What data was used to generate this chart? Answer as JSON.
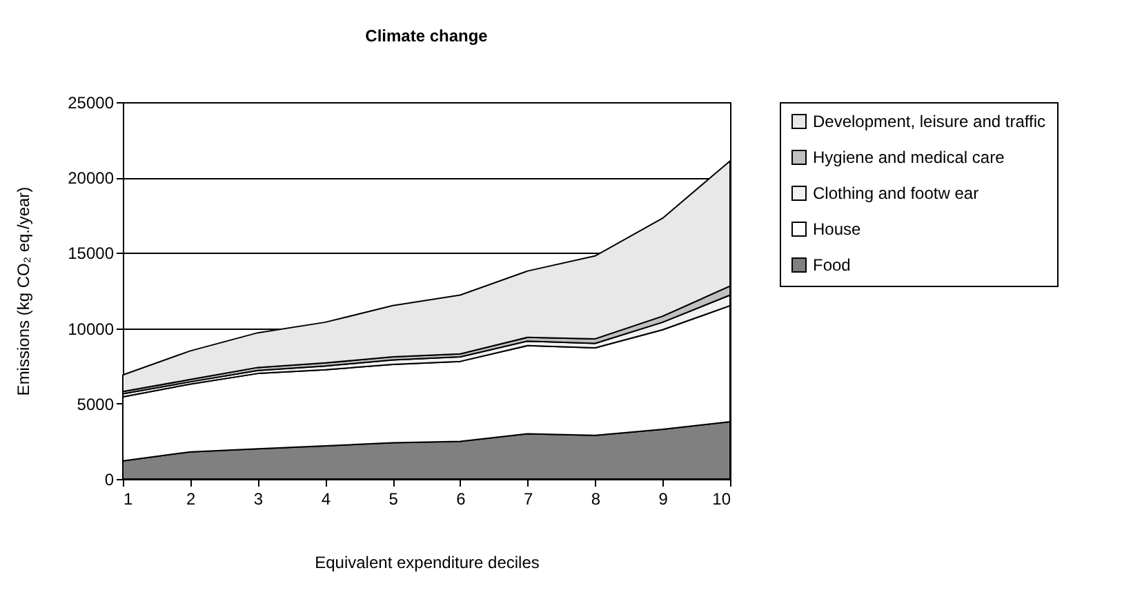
{
  "chart_data": {
    "type": "area",
    "title": "Climate change",
    "xlabel": "Equivalent expenditure deciles",
    "ylabel": "Emissions (kg CO₂ eq./year)",
    "x": [
      1,
      2,
      3,
      4,
      5,
      6,
      7,
      8,
      9,
      10
    ],
    "xlim": [
      1,
      10
    ],
    "xticks": [
      1,
      2,
      3,
      4,
      5,
      6,
      7,
      8,
      9,
      10
    ],
    "ylim": [
      0,
      25000
    ],
    "yticks": [
      0,
      5000,
      10000,
      15000,
      20000,
      25000
    ],
    "stacked": true,
    "grid": "y",
    "legend": "right",
    "series": [
      {
        "name": "Food",
        "color": "#808080",
        "values": [
          1200,
          1800,
          2000,
          2200,
          2400,
          2500,
          3000,
          2900,
          3300,
          3800
        ]
      },
      {
        "name": "House",
        "color": "#ffffff",
        "values": [
          4250,
          4500,
          5000,
          5050,
          5200,
          5300,
          5850,
          5800,
          6600,
          7700
        ]
      },
      {
        "name": "Clothing and footw ear",
        "color": "#f2f2f2",
        "values": [
          200,
          150,
          200,
          250,
          300,
          300,
          300,
          300,
          500,
          700
        ]
      },
      {
        "name": "Hygiene and medical care",
        "color": "#c0c0c0",
        "values": [
          150,
          150,
          200,
          200,
          200,
          200,
          250,
          300,
          400,
          600
        ]
      },
      {
        "name": "Development, leisure and traffic",
        "color": "#e8e8e8",
        "values": [
          1100,
          1900,
          2300,
          2700,
          3400,
          3900,
          4400,
          5500,
          6500,
          8300
        ]
      }
    ]
  }
}
